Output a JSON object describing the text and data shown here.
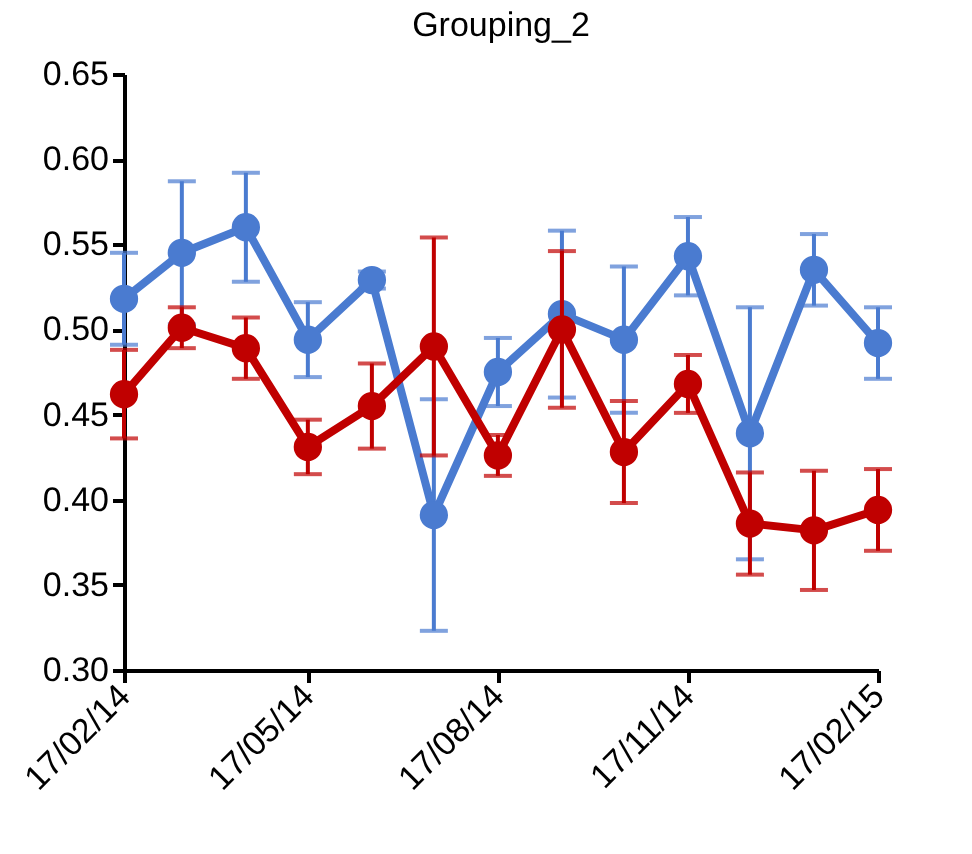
{
  "chart_data": {
    "type": "line",
    "title": "Grouping_2",
    "x": [
      "2014-02-17",
      "2014-03-17",
      "2014-04-17",
      "2014-05-17",
      "2014-06-17",
      "2014-07-17",
      "2014-08-17",
      "2014-09-17",
      "2014-10-17",
      "2014-11-17",
      "2014-12-17",
      "2015-01-17",
      "2015-02-17"
    ],
    "series": [
      {
        "color": "#4a7bd0",
        "values": [
          0.518,
          0.545,
          0.56,
          0.494,
          0.529,
          0.391,
          0.475,
          0.509,
          0.494,
          0.543,
          0.439,
          0.535,
          0.492
        ],
        "errors": [
          0.027,
          0.042,
          0.032,
          0.022,
          0.005,
          0.068,
          0.02,
          0.049,
          0.043,
          0.023,
          0.074,
          0.021,
          0.021
        ]
      },
      {
        "color": "#c00000",
        "values": [
          0.462,
          0.501,
          0.489,
          0.431,
          0.455,
          0.49,
          0.426,
          0.5,
          0.428,
          0.468,
          0.386,
          0.382,
          0.394
        ],
        "errors": [
          0.026,
          0.012,
          0.018,
          0.016,
          0.025,
          0.064,
          0.012,
          0.046,
          0.03,
          0.017,
          0.03,
          0.035,
          0.024
        ]
      }
    ],
    "xlim": [
      "2014-02-17",
      "2015-02-17"
    ],
    "xticks": [
      {
        "value": "2014-02-17",
        "label": "17/02/14"
      },
      {
        "value": "2014-05-17",
        "label": "17/05/14"
      },
      {
        "value": "2014-08-17",
        "label": "17/08/14"
      },
      {
        "value": "2014-11-17",
        "label": "17/11/14"
      },
      {
        "value": "2015-02-17",
        "label": "17/02/15"
      }
    ],
    "ylim": [
      0.3,
      0.65
    ],
    "yticks": [
      {
        "value": 0.3,
        "label": "0.30"
      },
      {
        "value": 0.35,
        "label": "0.35"
      },
      {
        "value": 0.4,
        "label": "0.40"
      },
      {
        "value": 0.45,
        "label": "0.45"
      },
      {
        "value": 0.5,
        "label": "0.50"
      },
      {
        "value": 0.55,
        "label": "0.55"
      },
      {
        "value": 0.6,
        "label": "0.60"
      },
      {
        "value": 0.65,
        "label": "0.65"
      }
    ],
    "marker": "circle",
    "line_style": "solid",
    "grid": false
  }
}
